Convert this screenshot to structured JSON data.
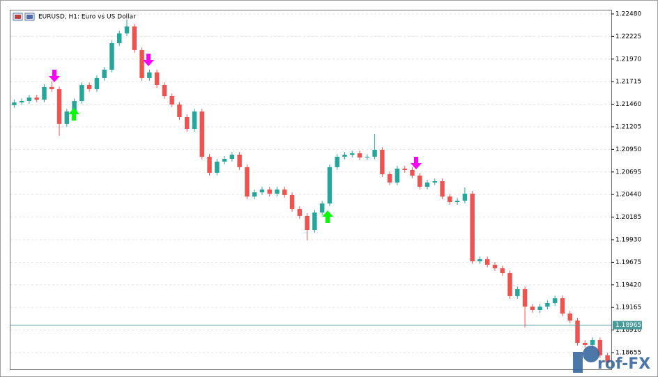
{
  "chart_data": {
    "type": "candlestick",
    "title": "EURUSD, H1:  Euro vs US Dollar",
    "ylim": [
      1.18466,
      1.22519
    ],
    "yticks": [
      {
        "value": 1.2248,
        "label": "1.22480"
      },
      {
        "value": 1.22225,
        "label": "1.22225"
      },
      {
        "value": 1.2197,
        "label": "1.21970"
      },
      {
        "value": 1.21715,
        "label": "1.21715"
      },
      {
        "value": 1.2146,
        "label": "1.21460"
      },
      {
        "value": 1.21205,
        "label": "1.21205"
      },
      {
        "value": 1.2095,
        "label": "1.20950"
      },
      {
        "value": 1.20695,
        "label": "1.20695"
      },
      {
        "value": 1.2044,
        "label": "1.20440"
      },
      {
        "value": 1.20185,
        "label": "1.20185"
      },
      {
        "value": 1.1993,
        "label": "1.19930"
      },
      {
        "value": 1.19675,
        "label": "1.19675"
      },
      {
        "value": 1.1942,
        "label": "1.19420"
      },
      {
        "value": 1.19165,
        "label": "1.19165"
      },
      {
        "value": 1.1891,
        "label": "1.18910"
      },
      {
        "value": 1.18655,
        "label": "1.18655"
      }
    ],
    "grid": true,
    "up_color": "#26a69a",
    "down_color": "#ef5350",
    "price_line": {
      "value": 1.18965,
      "label": "1.18965",
      "color": "#4a9a9a"
    },
    "open": [
      1.2145,
      1.21481,
      1.21496,
      1.21536,
      1.21512,
      1.21654,
      1.2163,
      1.21237,
      1.21378,
      1.21496,
      1.21677,
      1.2163,
      1.21756,
      1.2185,
      1.22149,
      1.2226,
      1.22338,
      1.22071,
      1.21756,
      1.21819,
      1.21677,
      1.21551,
      1.21457,
      1.21315,
      1.21181,
      1.21378,
      1.20867,
      1.20686,
      1.20812,
      1.20843,
      1.2089,
      1.20749,
      1.20418,
      1.20465,
      1.20497,
      1.2045,
      1.20497,
      1.20434,
      1.20276,
      1.20198,
      1.2004,
      1.20237,
      1.20339,
      1.20749,
      1.20867,
      1.2089,
      1.20906,
      1.20859,
      1.20867,
      1.20945,
      1.2067,
      1.20576,
      1.20733,
      1.20717,
      1.20654,
      1.20528,
      1.20576,
      1.20591,
      1.20418,
      1.20355,
      1.20371,
      1.2045,
      1.19686,
      1.1971,
      1.19647,
      1.19607,
      1.19552,
      1.19293,
      1.19371,
      1.19175,
      1.19135,
      1.19175,
      1.19214,
      1.19269,
      1.19096,
      1.19017,
      1.18765,
      1.18742,
      1.18797,
      1.18624
    ],
    "high": [
      1.21511,
      1.21526,
      1.21566,
      1.21566,
      1.21684,
      1.2172,
      1.2166,
      1.21408,
      1.21526,
      1.21707,
      1.21707,
      1.21786,
      1.2188,
      1.22179,
      1.2229,
      1.22417,
      1.22368,
      1.22101,
      1.21849,
      1.21849,
      1.21707,
      1.21581,
      1.21487,
      1.21345,
      1.21408,
      1.21408,
      1.20897,
      1.20842,
      1.20873,
      1.2092,
      1.2092,
      1.20779,
      1.20495,
      1.20527,
      1.20527,
      1.20527,
      1.20527,
      1.20464,
      1.20306,
      1.20228,
      1.20267,
      1.20369,
      1.20779,
      1.20897,
      1.2092,
      1.20936,
      1.20936,
      1.20897,
      1.21126,
      1.20975,
      1.207,
      1.20763,
      1.20763,
      1.20747,
      1.20684,
      1.20606,
      1.20621,
      1.20621,
      1.20448,
      1.20401,
      1.2052,
      1.2048,
      1.1974,
      1.1974,
      1.19677,
      1.19637,
      1.19582,
      1.19401,
      1.19401,
      1.19205,
      1.19205,
      1.19244,
      1.19299,
      1.19299,
      1.19126,
      1.19047,
      1.18795,
      1.18827,
      1.18827,
      1.18654
    ],
    "low": [
      1.2142,
      1.21451,
      1.21466,
      1.21482,
      1.21482,
      1.216,
      1.21103,
      1.21207,
      1.21348,
      1.21466,
      1.216,
      1.216,
      1.21726,
      1.2182,
      1.22119,
      1.2223,
      1.22041,
      1.21726,
      1.21726,
      1.21647,
      1.21521,
      1.21427,
      1.21285,
      1.21151,
      1.21151,
      1.20837,
      1.20656,
      1.20656,
      1.20782,
      1.20813,
      1.20719,
      1.20388,
      1.20388,
      1.20435,
      1.2042,
      1.2042,
      1.20404,
      1.20246,
      1.20168,
      1.19922,
      1.2001,
      1.20207,
      1.20309,
      1.20719,
      1.20837,
      1.2086,
      1.20829,
      1.20829,
      1.20837,
      1.2064,
      1.20546,
      1.20546,
      1.20687,
      1.20624,
      1.20498,
      1.20498,
      1.20546,
      1.20388,
      1.20325,
      1.20325,
      1.20341,
      1.19656,
      1.19656,
      1.19617,
      1.19577,
      1.19522,
      1.19263,
      1.19263,
      1.18939,
      1.19105,
      1.19105,
      1.19145,
      1.19184,
      1.19066,
      1.18987,
      1.18735,
      1.18712,
      1.18712,
      1.18594,
      1.18515
    ],
    "close": [
      1.21481,
      1.21496,
      1.21536,
      1.21512,
      1.21654,
      1.2163,
      1.21237,
      1.21378,
      1.21496,
      1.21677,
      1.2163,
      1.21756,
      1.2185,
      1.22149,
      1.2226,
      1.22338,
      1.22071,
      1.21756,
      1.21819,
      1.21677,
      1.21551,
      1.21457,
      1.21315,
      1.21181,
      1.21378,
      1.20867,
      1.20686,
      1.20812,
      1.20843,
      1.2089,
      1.20749,
      1.20418,
      1.20465,
      1.20497,
      1.2045,
      1.20497,
      1.20434,
      1.20276,
      1.20198,
      1.2004,
      1.20237,
      1.20339,
      1.20749,
      1.20867,
      1.2089,
      1.20906,
      1.20859,
      1.20867,
      1.20945,
      1.2067,
      1.20576,
      1.20733,
      1.20717,
      1.20654,
      1.20528,
      1.20576,
      1.20591,
      1.20418,
      1.20355,
      1.20371,
      1.2045,
      1.19686,
      1.1971,
      1.19647,
      1.19607,
      1.19552,
      1.19293,
      1.19371,
      1.19175,
      1.19135,
      1.19175,
      1.19214,
      1.19269,
      1.19096,
      1.19017,
      1.18765,
      1.18742,
      1.18797,
      1.18624,
      1.18545
    ]
  },
  "watermark": "rof-FX"
}
